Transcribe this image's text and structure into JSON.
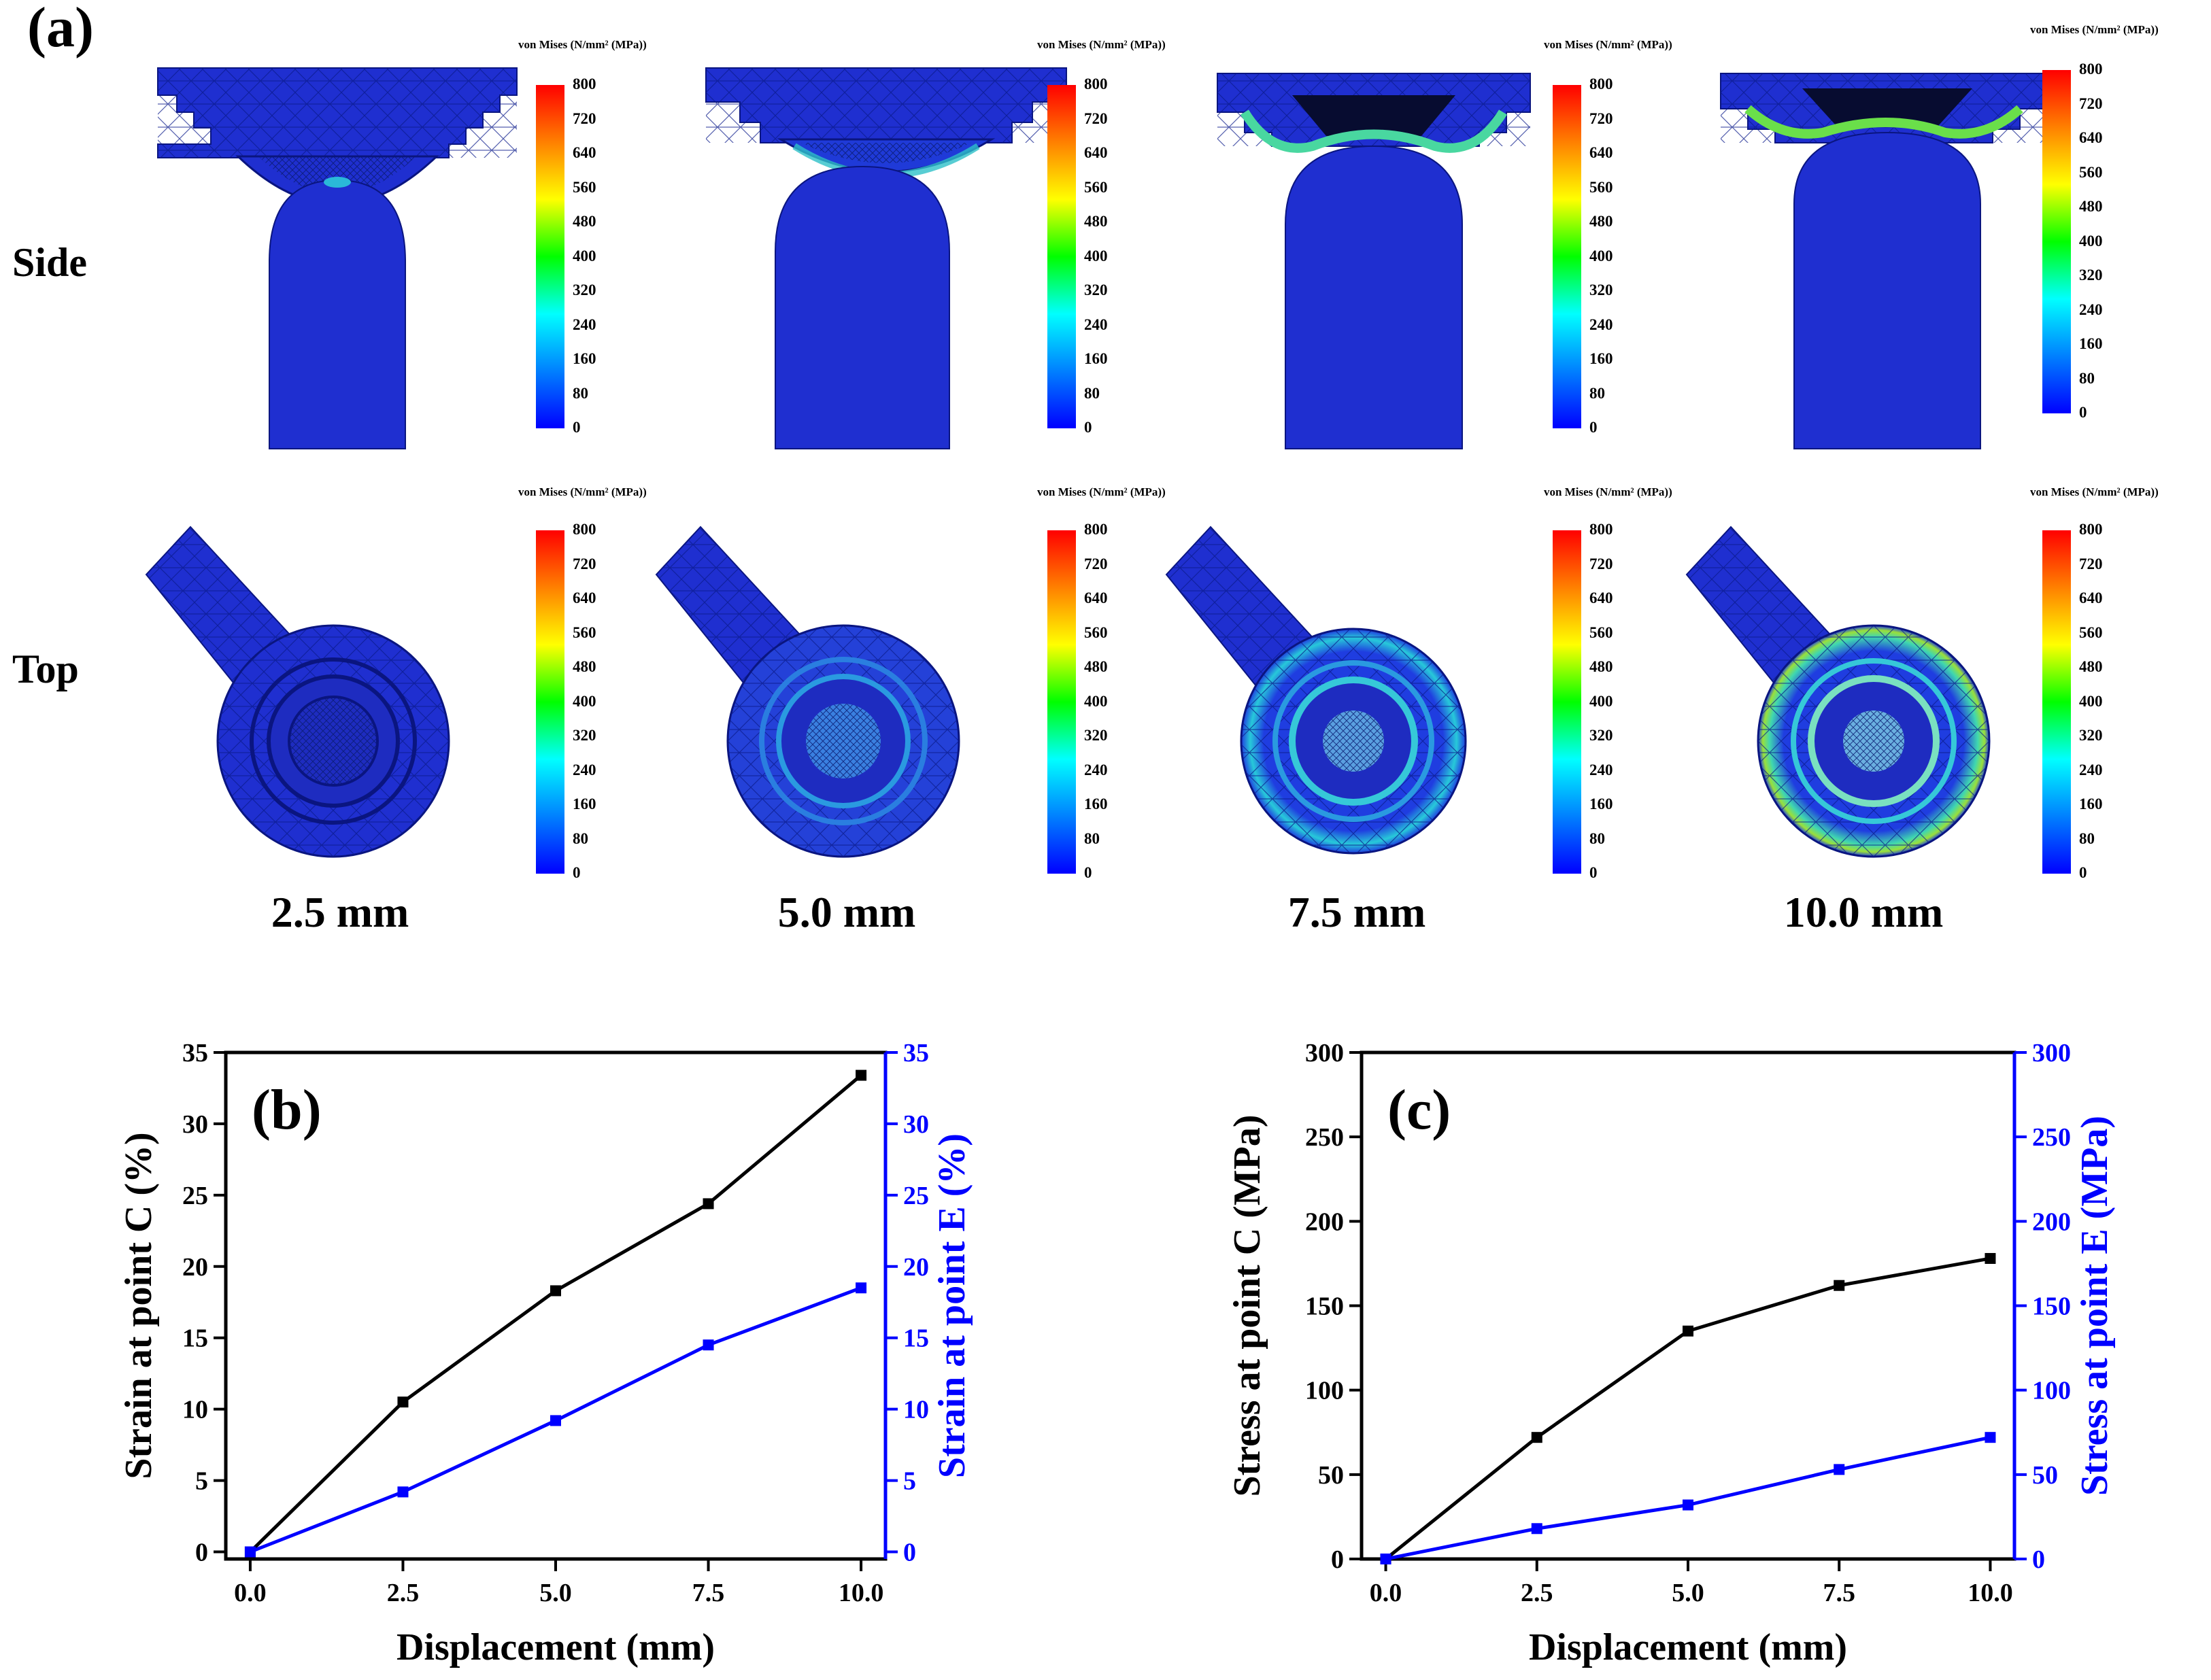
{
  "panel_a": {
    "label": "(a)",
    "rows": [
      "Side",
      "Top"
    ],
    "displacements": [
      "2.5 mm",
      "5.0 mm",
      "7.5 mm",
      "10.0 mm"
    ],
    "colorbar_title": "von Mises (N/mm² (MPa))",
    "colorbar_ticks": [
      "800",
      "720",
      "640",
      "560",
      "480",
      "400",
      "320",
      "240",
      "160",
      "80",
      "0"
    ],
    "colormap": [
      "#ff0000",
      "#ff8000",
      "#ffff00",
      "#00ff00",
      "#00ffff",
      "#0080ff",
      "#0000ff"
    ],
    "mesh_color": "#2236c8"
  },
  "chart_data": [
    {
      "type": "line",
      "panel": "(b)",
      "x": [
        0.0,
        2.5,
        5.0,
        7.5,
        10.0
      ],
      "xticks": [
        "0.0",
        "2.5",
        "5.0",
        "7.5",
        "10.0"
      ],
      "xlabel": "Displacement (mm)",
      "xlim": [
        -0.4,
        10.4
      ],
      "yticks": [
        "0",
        "5",
        "10",
        "15",
        "20",
        "25",
        "30",
        "35"
      ],
      "ylim": [
        -0.5,
        35
      ],
      "ylabel": "Strain at point C (%)",
      "ylabel_right": "Strain at point E (%)",
      "series": [
        {
          "values": [
            0,
            10.5,
            18.3,
            24.4,
            33.4
          ],
          "color": "#000000",
          "axis": "left"
        },
        {
          "values": [
            0,
            4.2,
            9.2,
            14.5,
            18.5
          ],
          "color": "#0000ff",
          "axis": "right"
        }
      ]
    },
    {
      "type": "line",
      "panel": "(c)",
      "x": [
        0.0,
        2.5,
        5.0,
        7.5,
        10.0
      ],
      "xticks": [
        "0.0",
        "2.5",
        "5.0",
        "7.5",
        "10.0"
      ],
      "xlabel": "Displacement (mm)",
      "xlim": [
        -0.4,
        10.4
      ],
      "yticks": [
        "0",
        "50",
        "100",
        "150",
        "200",
        "250",
        "300"
      ],
      "ylim": [
        0,
        300
      ],
      "ylabel": "Stress at point C (MPa)",
      "ylabel_right": "Stress at point E (MPa)",
      "series": [
        {
          "values": [
            0,
            72,
            135,
            162,
            178
          ],
          "color": "#000000",
          "axis": "left"
        },
        {
          "values": [
            0,
            18,
            32,
            53,
            72
          ],
          "color": "#0000ff",
          "axis": "right"
        }
      ]
    }
  ]
}
